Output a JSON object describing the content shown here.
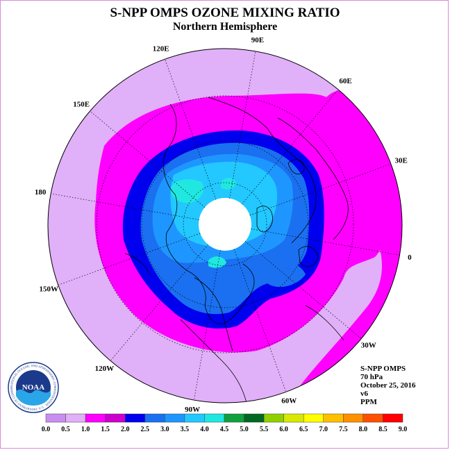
{
  "title": "S-NPP OMPS OZONE MIXING RATIO",
  "subtitle": "Northern Hemisphere",
  "longitude_labels": [
    {
      "label": "90E",
      "lon": 90
    },
    {
      "label": "60E",
      "lon": 60
    },
    {
      "label": "30E",
      "lon": 30
    },
    {
      "label": "0",
      "lon": 0
    },
    {
      "label": "30W",
      "lon": -30
    },
    {
      "label": "60W",
      "lon": -60
    },
    {
      "label": "90W",
      "lon": -90
    },
    {
      "label": "120W",
      "lon": -120
    },
    {
      "label": "150W",
      "lon": -150
    },
    {
      "label": "180",
      "lon": 180
    },
    {
      "label": "150E",
      "lon": 150
    },
    {
      "label": "120E",
      "lon": 120
    }
  ],
  "info": {
    "instrument": "S-NPP OMPS",
    "level": "70 hPa",
    "date": "October 25, 2016",
    "version": "v6",
    "units": "PPM"
  },
  "logo": {
    "text": "NOAA",
    "ring_text": "NATIONAL OCEANIC AND ATMOSPHERIC ADMINISTRATION · U.S. DEPARTMENT OF COMMERCE"
  },
  "colorbar": {
    "ticks": [
      "0.0",
      "0.5",
      "1.0",
      "1.5",
      "2.0",
      "2.5",
      "3.0",
      "3.5",
      "4.0",
      "4.5",
      "5.0",
      "5.5",
      "6.0",
      "6.5",
      "7.0",
      "7.5",
      "8.0",
      "8.5",
      "9.0"
    ],
    "colors": [
      "#c98ef0",
      "#e0b0f8",
      "#ff00ff",
      "#cc00cc",
      "#0000ee",
      "#1a70f0",
      "#1e96ff",
      "#22c8ff",
      "#20e8e0",
      "#10a040",
      "#006820",
      "#90d000",
      "#d8e800",
      "#ffff00",
      "#ffc000",
      "#ff9000",
      "#ff5000",
      "#ff0000",
      "#8b5a3c"
    ]
  },
  "map_colors": {
    "outer": "#e0b0f8",
    "mid": "#ff00ff",
    "ring_dark": "#0000ee",
    "ring_medium": "#1a70f0",
    "inner": "#1e96ff",
    "core": "#22c8ff",
    "max": "#20e8e0",
    "polar_night": "#ffffff"
  }
}
